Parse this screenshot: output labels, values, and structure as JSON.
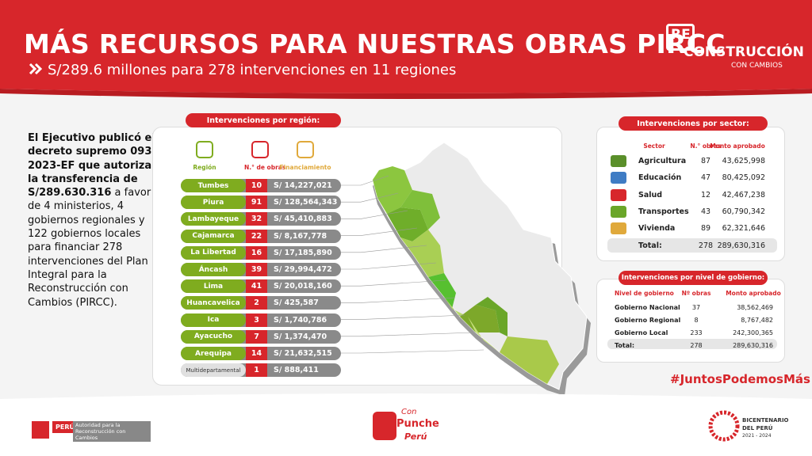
{
  "header": {
    "title": "MÁS RECURSOS PARA NUESTRAS OBRAS PIRCC",
    "subtitle": "S/289.6 millones para 278 intervenciones en 11 regiones"
  },
  "logo": {
    "re": "RE",
    "construccion": "CONSTRUCCIÓN",
    "tagline": "CON CAMBIOS"
  },
  "intro": {
    "bold": "El Ejecutivo publicó el decreto supremo 093-2023-EF que autoriza la transferencia de S/289.630.316",
    "text": "a favor de 4 ministerios, 4 gobiernos regionales y 122 gobiernos locales para financiar 278 intervenciones del Plan Integral para la Reconstrucción con Cambios (PIRCC)."
  },
  "regions": {
    "title": "Intervenciones por región:",
    "columns": [
      "Región",
      "N.° de obras",
      "Financiamiento"
    ],
    "rows": [
      [
        "Tumbes",
        10,
        "S/ 14,227,021"
      ],
      [
        "Piura",
        91,
        "S/ 128,564,343"
      ],
      [
        "Lambayeque",
        32,
        "S/ 45,410,883"
      ],
      [
        "Cajamarca",
        22,
        "S/ 8,167,778"
      ],
      [
        "La Libertad",
        16,
        "S/ 17,185,890"
      ],
      [
        "Áncash",
        39,
        "S/ 29,994,472"
      ],
      [
        "Lima",
        41,
        "S/ 20,018,160"
      ],
      [
        "Huancavelica",
        2,
        "S/ 425,587"
      ],
      [
        "Ica",
        3,
        "S/ 1,740,786"
      ],
      [
        "Ayacucho",
        7,
        "S/ 1,374,470"
      ],
      [
        "Arequipa",
        14,
        "S/ 21,632,515"
      ],
      [
        "Multidepartamental",
        1,
        "S/ 888,411"
      ]
    ]
  },
  "sectors": {
    "title": "Intervenciones por sector:",
    "columns": [
      "Sector",
      "N.° obras",
      "Monto aprobado"
    ],
    "rows": [
      [
        "Agricultura",
        87,
        "43,625,998"
      ],
      [
        "Educación",
        47,
        "80,425,092"
      ],
      [
        "Salud",
        12,
        "42,467,238"
      ],
      [
        "Transportes",
        43,
        "60,790,342"
      ],
      [
        "Vivienda",
        89,
        "62,321,646"
      ]
    ],
    "total": [
      "Total:",
      278,
      "289,630,316"
    ]
  },
  "government": {
    "title": "Intervenciones por nivel de gobierno:",
    "columns": [
      "Nivel de gobierno",
      "Nº obras",
      "Monto aprobado"
    ],
    "rows": [
      [
        "Gobierno Nacional",
        37,
        "38,562,469"
      ],
      [
        "Gobierno Regional",
        8,
        "8,767,482"
      ],
      [
        "Gobierno Local",
        233,
        "242,300,365"
      ]
    ],
    "total": [
      "Total:",
      278,
      "289,630,316"
    ]
  },
  "hashtag": "#JuntosPodemosMás",
  "footer": {
    "peru": "PERÚ",
    "authority": "Autoridad para la Reconstrucción con Cambios",
    "punche": [
      "Con",
      "Punche",
      "Perú"
    ],
    "bicentenario": [
      "BICENTENARIO",
      "DEL PERÚ",
      "2021 - 2024"
    ]
  }
}
